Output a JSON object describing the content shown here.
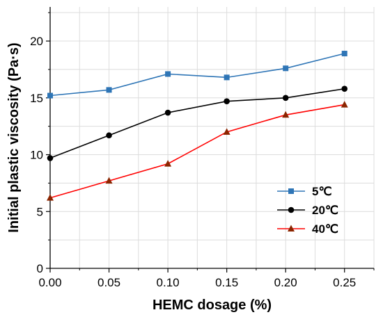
{
  "chart_data": {
    "type": "line",
    "xlabel": "HEMC dosage (%)",
    "ylabel": "Initial plastic viscosity (Pa·s)",
    "x": [
      0.0,
      0.05,
      0.1,
      0.15,
      0.2,
      0.25
    ],
    "xlim": [
      0.0,
      0.275
    ],
    "ylim": [
      0,
      23
    ],
    "x_ticks": [
      0.0,
      0.05,
      0.1,
      0.15,
      0.2,
      0.25
    ],
    "x_tick_labels": [
      "0.00",
      "0.05",
      "0.10",
      "0.15",
      "0.20",
      "0.25"
    ],
    "y_ticks": [
      0,
      5,
      10,
      15,
      20
    ],
    "y_tick_labels": [
      "0",
      "5",
      "10",
      "15",
      "20"
    ],
    "grid": true,
    "legend_position": "bottom-right",
    "series": [
      {
        "name": "5℃",
        "values": [
          15.2,
          15.7,
          17.1,
          16.8,
          17.6,
          18.9
        ],
        "color": "#2e75b6",
        "marker": "square"
      },
      {
        "name": "20℃",
        "values": [
          9.7,
          11.7,
          13.7,
          14.7,
          15.0,
          15.8
        ],
        "color": "#000000",
        "marker": "circle"
      },
      {
        "name": "40℃",
        "values": [
          6.2,
          7.7,
          9.2,
          12.0,
          13.5,
          14.4
        ],
        "color": "#ff0000",
        "marker": "triangle",
        "marker_color": "#8b2500"
      }
    ]
  }
}
